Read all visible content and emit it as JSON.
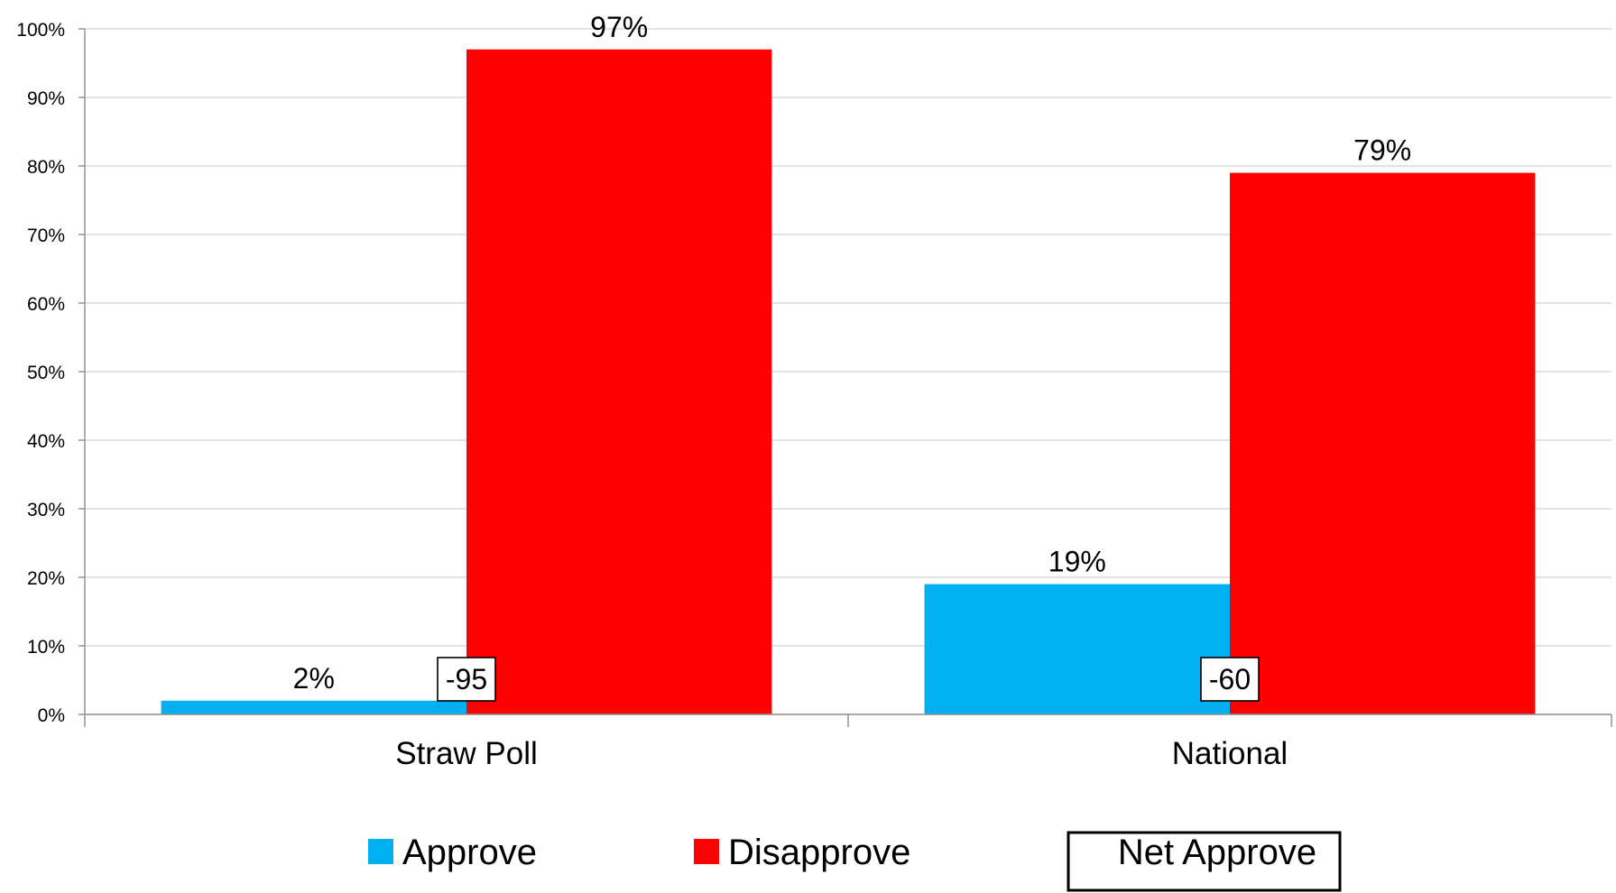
{
  "chart_data": {
    "type": "bar",
    "categories": [
      "Straw Poll",
      "National"
    ],
    "series": [
      {
        "name": "Approve",
        "values": [
          2,
          19
        ],
        "color": "#00B0F0",
        "labels": [
          "2%",
          "19%"
        ]
      },
      {
        "name": "Disapprove",
        "values": [
          97,
          79
        ],
        "color": "#FF0000",
        "labels": [
          "97%",
          "79%"
        ]
      }
    ],
    "net_approve": {
      "name": "Net Approve",
      "values": [
        -95,
        -60
      ],
      "labels": [
        "-95",
        "-60"
      ]
    },
    "ylim": [
      0,
      100
    ],
    "yticks": [
      0,
      10,
      20,
      30,
      40,
      50,
      60,
      70,
      80,
      90,
      100
    ],
    "ytick_labels": [
      "0%",
      "10%",
      "20%",
      "30%",
      "40%",
      "50%",
      "60%",
      "70%",
      "80%",
      "90%",
      "100%"
    ],
    "title": "",
    "xlabel": "",
    "ylabel": "",
    "grid": true,
    "legend_position": "bottom"
  }
}
